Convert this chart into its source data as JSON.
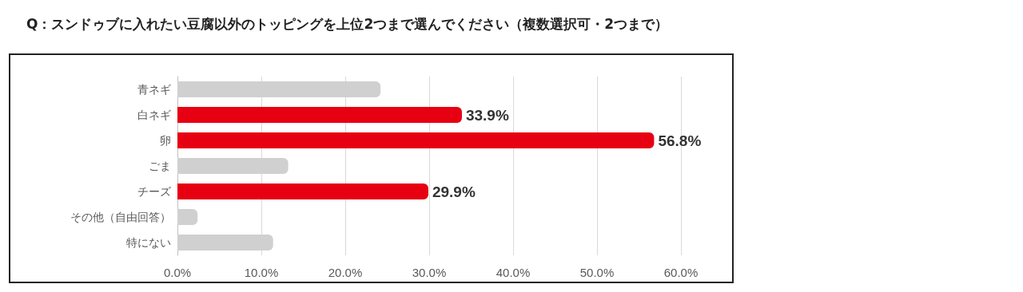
{
  "chart_data": {
    "type": "bar",
    "orientation": "horizontal",
    "title": "Q：スンドゥブに入れたい豆腐以外のトッピングを上位2つまで選んでください（複数選択可・2つまで）",
    "categories": [
      "青ネギ",
      "白ネギ",
      "卵",
      "ごま",
      "チーズ",
      "その他（自由回答）",
      "特にない"
    ],
    "values": [
      24.2,
      33.9,
      56.8,
      13.2,
      29.9,
      2.4,
      11.4
    ],
    "colors": [
      "#d0d0d0",
      "#e60012",
      "#e60012",
      "#d0d0d0",
      "#e60012",
      "#d0d0d0",
      "#d0d0d0"
    ],
    "value_labels": [
      null,
      "33.9%",
      "56.8%",
      null,
      "29.9%",
      null,
      null
    ],
    "xlim": [
      0,
      60
    ],
    "xticks": [
      {
        "value": 0,
        "label": "0.0%"
      },
      {
        "value": 10,
        "label": "10.0%"
      },
      {
        "value": 20,
        "label": "20.0%"
      },
      {
        "value": 30,
        "label": "30.0%"
      },
      {
        "value": 40,
        "label": "40.0%"
      },
      {
        "value": 50,
        "label": "50.0%"
      },
      {
        "value": 60,
        "label": "60.0%"
      }
    ],
    "grid": "x"
  }
}
